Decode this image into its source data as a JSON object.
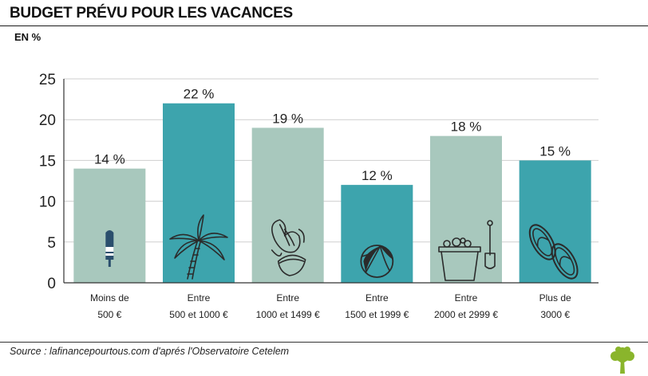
{
  "title": "BUDGET PRÉVU POUR LES VACANCES",
  "unit": "EN %",
  "source": "Source : lafinancepourtous.com d'aprés l'Observatoire Cetelem",
  "colors": {
    "light": "#a8c8bd",
    "dark": "#3da4ad",
    "grid": "#cfcfcf",
    "axis": "#333333"
  },
  "chart_data": {
    "type": "bar",
    "title": "BUDGET PRÉVU POUR LES VACANCES",
    "ylabel": "EN %",
    "ylim": [
      0,
      25
    ],
    "yticks": [
      0,
      5,
      10,
      15,
      20,
      25
    ],
    "grid": true,
    "categories": [
      {
        "line1": "Moins de",
        "line2": "500  €"
      },
      {
        "line1": "Entre",
        "line2": "500  et 1000 €"
      },
      {
        "line1": "Entre",
        "line2": "1000 et 1499 €"
      },
      {
        "line1": "Entre",
        "line2": "1500 et 1999 €"
      },
      {
        "line1": "Entre",
        "line2": "2000 et 2999 €"
      },
      {
        "line1": "Plus de",
        "line2": "3000 €"
      }
    ],
    "values": [
      14,
      22,
      19,
      12,
      18,
      15
    ],
    "value_labels": [
      "14 %",
      "22 %",
      "19 %",
      "12 %",
      "18 %",
      "15 %"
    ],
    "bar_colors": [
      "light",
      "dark",
      "light",
      "dark",
      "light",
      "dark"
    ],
    "icons": [
      "popsicle-icon",
      "palm-tree-icon",
      "shell-icon",
      "beach-ball-icon",
      "sand-bucket-icon",
      "flip-flops-icon"
    ]
  }
}
